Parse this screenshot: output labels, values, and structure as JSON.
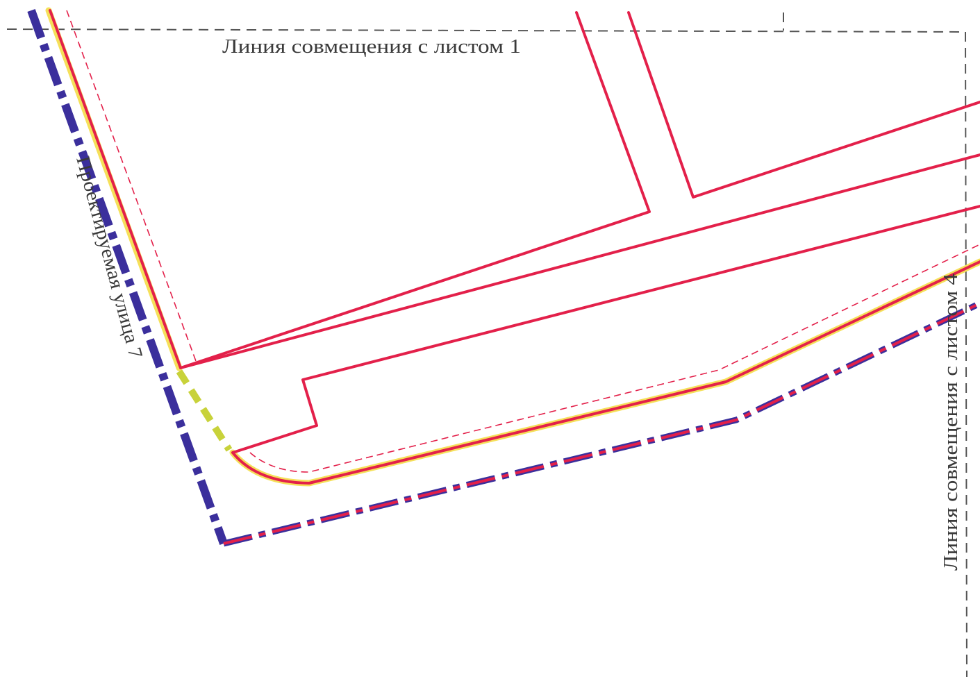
{
  "labels": {
    "sheet1_match_line": "Линия совмещения с листом 1",
    "sheet4_match_line": "Линия совмещения с листом 4",
    "projected_street": "Проектируемая улица 7"
  },
  "legend_colors": {
    "red_line": "#e3204a",
    "yellow_line": "#f5e05a",
    "blue_line": "#3b2f9c",
    "olive_dash": "#c8d23a",
    "match_line": "#555555"
  }
}
